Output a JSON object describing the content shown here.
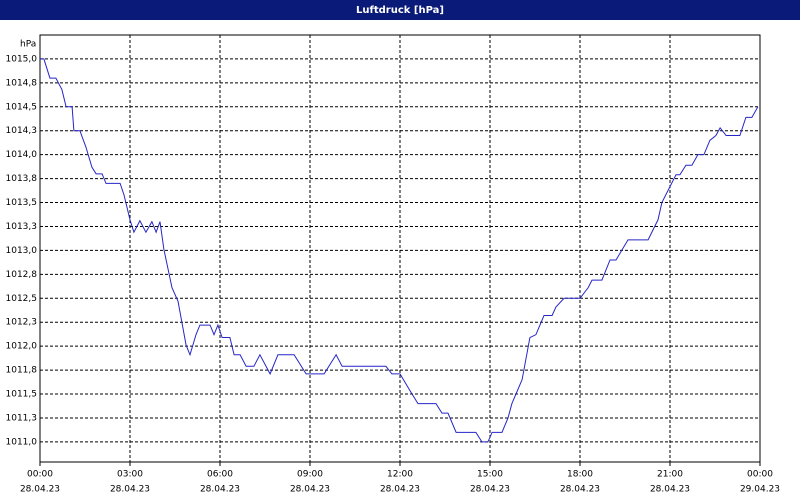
{
  "window_title": "Luftdruck [hPa]",
  "chart_data": {
    "type": "line",
    "y_label": "hPa",
    "x": [
      0,
      0.13,
      0.33,
      0.53,
      0.73,
      0.87,
      1.07,
      1.13,
      1.33,
      1.53,
      1.73,
      1.87,
      2.07,
      2.2,
      2.67,
      2.8,
      3,
      3.13,
      3.33,
      3.53,
      3.73,
      3.87,
      4,
      4.13,
      4.4,
      4.6,
      4.87,
      5,
      5.2,
      5.33,
      5.67,
      5.8,
      5.93,
      6.07,
      6.33,
      6.47,
      6.67,
      6.87,
      7.13,
      7.33,
      7.67,
      7.93,
      8.47,
      8.87,
      9.47,
      9.87,
      10.07,
      11.53,
      11.73,
      12,
      12.4,
      12.6,
      13.2,
      13.4,
      13.6,
      13.87,
      14.53,
      14.73,
      14.93,
      15.07,
      15.4,
      15.6,
      15.73,
      16.07,
      16.33,
      16.53,
      16.8,
      17.07,
      17.2,
      17.47,
      18,
      18.27,
      18.4,
      18.73,
      19,
      19.2,
      19.6,
      20.27,
      20.6,
      20.73,
      21.2,
      21.33,
      21.53,
      21.73,
      21.93,
      22.13,
      22.33,
      22.53,
      22.67,
      22.87,
      23.33,
      23.53,
      23.73,
      23.93
    ],
    "series": [
      {
        "color": "#2626c8",
        "values": [
          1015.0,
          1015.0,
          1014.8,
          1014.8,
          1014.68,
          1014.5,
          1014.5,
          1014.25,
          1014.25,
          1014.08,
          1013.87,
          1013.8,
          1013.8,
          1013.7,
          1013.7,
          1013.58,
          1013.32,
          1013.19,
          1013.31,
          1013.19,
          1013.3,
          1013.19,
          1013.3,
          1013.01,
          1012.61,
          1012.47,
          1012.01,
          1011.91,
          1012.12,
          1012.22,
          1012.22,
          1012.12,
          1012.22,
          1012.09,
          1012.09,
          1011.91,
          1011.91,
          1011.79,
          1011.79,
          1011.91,
          1011.71,
          1011.91,
          1011.91,
          1011.71,
          1011.71,
          1011.91,
          1011.79,
          1011.79,
          1011.71,
          1011.71,
          1011.5,
          1011.4,
          1011.4,
          1011.3,
          1011.3,
          1011.1,
          1011.1,
          1011.0,
          1011.0,
          1011.1,
          1011.1,
          1011.25,
          1011.4,
          1011.65,
          1012.09,
          1012.12,
          1012.32,
          1012.32,
          1012.41,
          1012.5,
          1012.5,
          1012.61,
          1012.69,
          1012.69,
          1012.9,
          1012.9,
          1013.11,
          1013.11,
          1013.32,
          1013.5,
          1013.79,
          1013.79,
          1013.89,
          1013.89,
          1014.0,
          1014.0,
          1014.15,
          1014.2,
          1014.28,
          1014.2,
          1014.2,
          1014.39,
          1014.39,
          1014.5
        ]
      }
    ],
    "xlim": [
      0,
      24
    ],
    "xticks": [
      {
        "value": 0,
        "label": "00:00"
      },
      {
        "value": 3,
        "label": "03:00"
      },
      {
        "value": 6,
        "label": "06:00"
      },
      {
        "value": 9,
        "label": "09:00"
      },
      {
        "value": 12,
        "label": "12:00"
      },
      {
        "value": 15,
        "label": "15:00"
      },
      {
        "value": 18,
        "label": "18:00"
      },
      {
        "value": 21,
        "label": "21:00"
      },
      {
        "value": 24,
        "label": "00:00"
      }
    ],
    "xtick_dates": [
      "28.04.23",
      "28.04.23",
      "28.04.23",
      "28.04.23",
      "28.04.23",
      "28.04.23",
      "28.04.23",
      "28.04.23",
      "29.04.23"
    ],
    "ylim": [
      1010.79,
      1015.25
    ],
    "yticks": [
      {
        "value": 1011,
        "label": "1011,0"
      },
      {
        "value": 1011.25,
        "label": "1011,3"
      },
      {
        "value": 1011.5,
        "label": "1011,5"
      },
      {
        "value": 1011.75,
        "label": "1011,8"
      },
      {
        "value": 1012,
        "label": "1012,0"
      },
      {
        "value": 1012.25,
        "label": "1012,3"
      },
      {
        "value": 1012.5,
        "label": "1012,5"
      },
      {
        "value": 1012.75,
        "label": "1012,8"
      },
      {
        "value": 1013,
        "label": "1013,0"
      },
      {
        "value": 1013.25,
        "label": "1013,3"
      },
      {
        "value": 1013.5,
        "label": "1013,5"
      },
      {
        "value": 1013.75,
        "label": "1013,8"
      },
      {
        "value": 1014,
        "label": "1014,0"
      },
      {
        "value": 1014.25,
        "label": "1014,3"
      },
      {
        "value": 1014.5,
        "label": "1014,5"
      },
      {
        "value": 1014.75,
        "label": "1014,8"
      },
      {
        "value": 1015,
        "label": "1015,0"
      }
    ],
    "grid": true
  }
}
